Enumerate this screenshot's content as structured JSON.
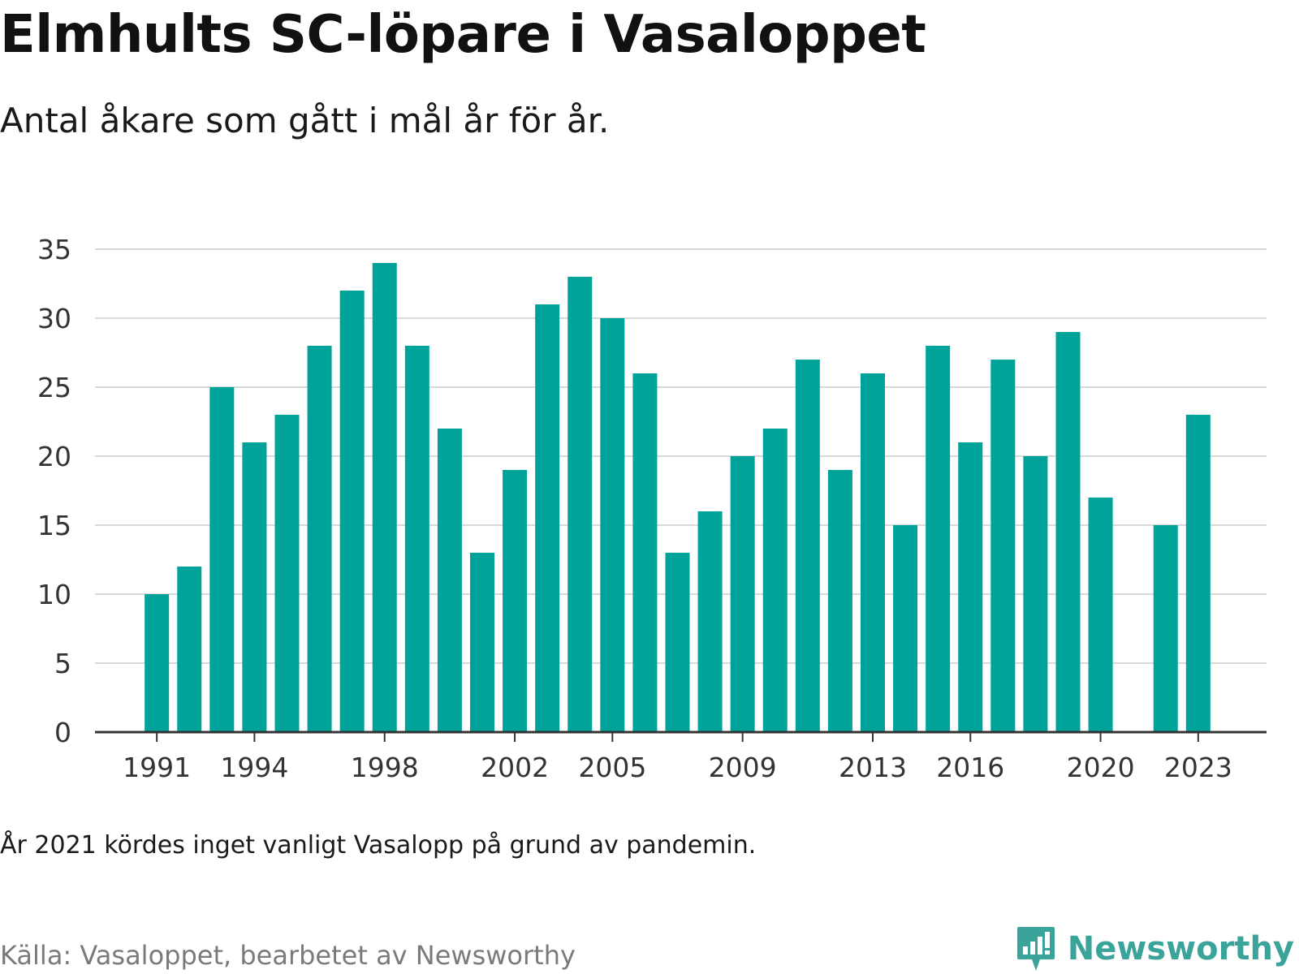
{
  "title": "Elmhults SC-löpare i Vasaloppet",
  "subtitle": "Antal åkare som gått i mål år för år.",
  "note": "År 2021 kördes inget vanligt Vasalopp på grund av pandemin.",
  "source": "Källa: Vasaloppet, bearbetet av Newsworthy",
  "brand": {
    "name": "Newsworthy",
    "icon": "newsworthy-logo-icon"
  },
  "colors": {
    "bar": "#00a39a",
    "grid": "#d9d9d9",
    "axis": "#333333",
    "brand": "#3aa49a"
  },
  "chart_data": {
    "type": "bar",
    "x": [
      1991,
      1992,
      1993,
      1994,
      1995,
      1996,
      1997,
      1998,
      1999,
      2000,
      2001,
      2002,
      2003,
      2004,
      2005,
      2006,
      2007,
      2008,
      2009,
      2010,
      2011,
      2012,
      2013,
      2014,
      2015,
      2016,
      2017,
      2018,
      2019,
      2020,
      2021,
      2022,
      2023
    ],
    "values": [
      10,
      12,
      25,
      21,
      23,
      28,
      32,
      34,
      28,
      22,
      13,
      19,
      31,
      33,
      30,
      26,
      13,
      16,
      20,
      22,
      27,
      19,
      26,
      15,
      28,
      21,
      27,
      20,
      29,
      17,
      null,
      15,
      23
    ],
    "x_ticks": [
      1991,
      1994,
      1998,
      2002,
      2005,
      2009,
      2013,
      2016,
      2020,
      2023
    ],
    "y_ticks": [
      0,
      5,
      10,
      15,
      20,
      25,
      30,
      35
    ],
    "ylim": [
      0,
      35
    ],
    "xlim": [
      1989.1,
      2025.1
    ],
    "grid": true,
    "legend": "none"
  }
}
